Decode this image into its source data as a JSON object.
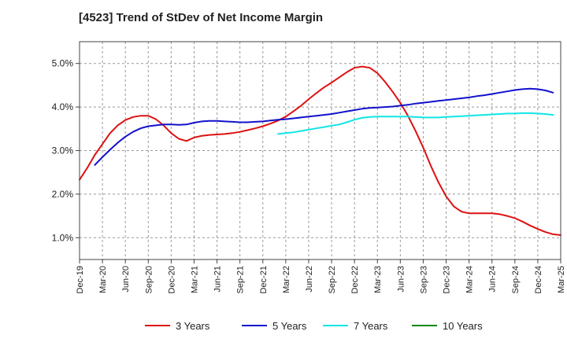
{
  "chart_data": {
    "type": "line",
    "title": "[4523]  Trend of StDev of Net Income Margin",
    "xlabel": "",
    "ylabel": "",
    "ylim": [
      0.5,
      5.5
    ],
    "y_ticks": [
      {
        "value": 1.0,
        "label": "1.0%"
      },
      {
        "value": 2.0,
        "label": "2.0%"
      },
      {
        "value": 3.0,
        "label": "3.0%"
      },
      {
        "value": 4.0,
        "label": "4.0%"
      },
      {
        "value": 5.0,
        "label": "5.0%"
      }
    ],
    "x_range": [
      "2019-12",
      "2025-03"
    ],
    "x_ticks": [
      {
        "date": "2019-12",
        "label": "Dec-19"
      },
      {
        "date": "2020-03",
        "label": "Mar-20"
      },
      {
        "date": "2020-06",
        "label": "Jun-20"
      },
      {
        "date": "2020-09",
        "label": "Sep-20"
      },
      {
        "date": "2020-12",
        "label": "Dec-20"
      },
      {
        "date": "2021-03",
        "label": "Mar-21"
      },
      {
        "date": "2021-06",
        "label": "Jun-21"
      },
      {
        "date": "2021-09",
        "label": "Sep-21"
      },
      {
        "date": "2021-12",
        "label": "Dec-21"
      },
      {
        "date": "2022-03",
        "label": "Mar-22"
      },
      {
        "date": "2022-06",
        "label": "Jun-22"
      },
      {
        "date": "2022-09",
        "label": "Sep-22"
      },
      {
        "date": "2022-12",
        "label": "Dec-22"
      },
      {
        "date": "2023-03",
        "label": "Mar-23"
      },
      {
        "date": "2023-06",
        "label": "Jun-23"
      },
      {
        "date": "2023-09",
        "label": "Sep-23"
      },
      {
        "date": "2023-12",
        "label": "Dec-23"
      },
      {
        "date": "2024-03",
        "label": "Mar-24"
      },
      {
        "date": "2024-06",
        "label": "Jun-24"
      },
      {
        "date": "2024-09",
        "label": "Sep-24"
      },
      {
        "date": "2024-12",
        "label": "Dec-24"
      },
      {
        "date": "2025-03",
        "label": "Mar-25"
      }
    ],
    "grid": true,
    "legend_position": "bottom",
    "series": [
      {
        "name": "3 Years",
        "color": "#dd1111",
        "points": [
          [
            "2019-12",
            2.33
          ],
          [
            "2020-01",
            2.6
          ],
          [
            "2020-02",
            2.9
          ],
          [
            "2020-03",
            3.15
          ],
          [
            "2020-04",
            3.4
          ],
          [
            "2020-05",
            3.58
          ],
          [
            "2020-06",
            3.7
          ],
          [
            "2020-07",
            3.77
          ],
          [
            "2020-08",
            3.8
          ],
          [
            "2020-09",
            3.8
          ],
          [
            "2020-10",
            3.72
          ],
          [
            "2020-11",
            3.58
          ],
          [
            "2020-12",
            3.4
          ],
          [
            "2021-01",
            3.27
          ],
          [
            "2021-02",
            3.22
          ],
          [
            "2021-03",
            3.3
          ],
          [
            "2021-04",
            3.34
          ],
          [
            "2021-05",
            3.36
          ],
          [
            "2021-06",
            3.37
          ],
          [
            "2021-07",
            3.38
          ],
          [
            "2021-08",
            3.4
          ],
          [
            "2021-09",
            3.43
          ],
          [
            "2021-10",
            3.47
          ],
          [
            "2021-11",
            3.51
          ],
          [
            "2021-12",
            3.56
          ],
          [
            "2022-01",
            3.62
          ],
          [
            "2022-02",
            3.69
          ],
          [
            "2022-03",
            3.78
          ],
          [
            "2022-04",
            3.9
          ],
          [
            "2022-05",
            4.03
          ],
          [
            "2022-06",
            4.18
          ],
          [
            "2022-07",
            4.32
          ],
          [
            "2022-08",
            4.45
          ],
          [
            "2022-09",
            4.56
          ],
          [
            "2022-10",
            4.68
          ],
          [
            "2022-11",
            4.8
          ],
          [
            "2022-12",
            4.9
          ],
          [
            "2023-01",
            4.93
          ],
          [
            "2023-02",
            4.9
          ],
          [
            "2023-03",
            4.78
          ],
          [
            "2023-04",
            4.58
          ],
          [
            "2023-05",
            4.35
          ],
          [
            "2023-06",
            4.1
          ],
          [
            "2023-07",
            3.8
          ],
          [
            "2023-08",
            3.45
          ],
          [
            "2023-09",
            3.07
          ],
          [
            "2023-10",
            2.65
          ],
          [
            "2023-11",
            2.27
          ],
          [
            "2023-12",
            1.95
          ],
          [
            "2024-01",
            1.72
          ],
          [
            "2024-02",
            1.6
          ],
          [
            "2024-03",
            1.56
          ],
          [
            "2024-04",
            1.56
          ],
          [
            "2024-05",
            1.56
          ],
          [
            "2024-06",
            1.56
          ],
          [
            "2024-07",
            1.54
          ],
          [
            "2024-08",
            1.5
          ],
          [
            "2024-09",
            1.45
          ],
          [
            "2024-10",
            1.37
          ],
          [
            "2024-11",
            1.28
          ],
          [
            "2024-12",
            1.2
          ],
          [
            "2025-01",
            1.13
          ],
          [
            "2025-02",
            1.08
          ],
          [
            "2025-03",
            1.06
          ]
        ]
      },
      {
        "name": "5 Years",
        "color": "#1111cc",
        "points": [
          [
            "2020-02",
            2.67
          ],
          [
            "2020-03",
            2.85
          ],
          [
            "2020-04",
            3.02
          ],
          [
            "2020-05",
            3.18
          ],
          [
            "2020-06",
            3.32
          ],
          [
            "2020-07",
            3.43
          ],
          [
            "2020-08",
            3.51
          ],
          [
            "2020-09",
            3.56
          ],
          [
            "2020-10",
            3.58
          ],
          [
            "2020-11",
            3.6
          ],
          [
            "2020-12",
            3.6
          ],
          [
            "2021-01",
            3.59
          ],
          [
            "2021-02",
            3.6
          ],
          [
            "2021-03",
            3.64
          ],
          [
            "2021-04",
            3.67
          ],
          [
            "2021-05",
            3.68
          ],
          [
            "2021-06",
            3.68
          ],
          [
            "2021-07",
            3.67
          ],
          [
            "2021-08",
            3.66
          ],
          [
            "2021-09",
            3.65
          ],
          [
            "2021-10",
            3.65
          ],
          [
            "2021-11",
            3.66
          ],
          [
            "2021-12",
            3.67
          ],
          [
            "2022-01",
            3.69
          ],
          [
            "2022-02",
            3.71
          ],
          [
            "2022-03",
            3.72
          ],
          [
            "2022-04",
            3.74
          ],
          [
            "2022-05",
            3.76
          ],
          [
            "2022-06",
            3.78
          ],
          [
            "2022-07",
            3.8
          ],
          [
            "2022-08",
            3.82
          ],
          [
            "2022-09",
            3.84
          ],
          [
            "2022-10",
            3.87
          ],
          [
            "2022-11",
            3.9
          ],
          [
            "2022-12",
            3.93
          ],
          [
            "2023-01",
            3.96
          ],
          [
            "2023-02",
            3.98
          ],
          [
            "2023-03",
            3.99
          ],
          [
            "2023-04",
            4.0
          ],
          [
            "2023-05",
            4.01
          ],
          [
            "2023-06",
            4.03
          ],
          [
            "2023-07",
            4.05
          ],
          [
            "2023-08",
            4.08
          ],
          [
            "2023-09",
            4.1
          ],
          [
            "2023-10",
            4.12
          ],
          [
            "2023-11",
            4.14
          ],
          [
            "2023-12",
            4.16
          ],
          [
            "2024-01",
            4.18
          ],
          [
            "2024-02",
            4.2
          ],
          [
            "2024-03",
            4.22
          ],
          [
            "2024-04",
            4.25
          ],
          [
            "2024-05",
            4.27
          ],
          [
            "2024-06",
            4.3
          ],
          [
            "2024-07",
            4.33
          ],
          [
            "2024-08",
            4.36
          ],
          [
            "2024-09",
            4.39
          ],
          [
            "2024-10",
            4.41
          ],
          [
            "2024-11",
            4.42
          ],
          [
            "2024-12",
            4.41
          ],
          [
            "2025-01",
            4.38
          ],
          [
            "2025-02",
            4.33
          ]
        ]
      },
      {
        "name": "7 Years",
        "color": "#11e5e5",
        "points": [
          [
            "2022-02",
            3.38
          ],
          [
            "2022-03",
            3.4
          ],
          [
            "2022-04",
            3.42
          ],
          [
            "2022-05",
            3.45
          ],
          [
            "2022-06",
            3.48
          ],
          [
            "2022-07",
            3.51
          ],
          [
            "2022-08",
            3.54
          ],
          [
            "2022-09",
            3.57
          ],
          [
            "2022-10",
            3.6
          ],
          [
            "2022-11",
            3.65
          ],
          [
            "2022-12",
            3.71
          ],
          [
            "2023-01",
            3.75
          ],
          [
            "2023-02",
            3.77
          ],
          [
            "2023-03",
            3.78
          ],
          [
            "2023-04",
            3.78
          ],
          [
            "2023-05",
            3.78
          ],
          [
            "2023-06",
            3.78
          ],
          [
            "2023-07",
            3.78
          ],
          [
            "2023-08",
            3.77
          ],
          [
            "2023-09",
            3.76
          ],
          [
            "2023-10",
            3.76
          ],
          [
            "2023-11",
            3.76
          ],
          [
            "2023-12",
            3.77
          ],
          [
            "2024-01",
            3.78
          ],
          [
            "2024-02",
            3.79
          ],
          [
            "2024-03",
            3.8
          ],
          [
            "2024-04",
            3.81
          ],
          [
            "2024-05",
            3.82
          ],
          [
            "2024-06",
            3.83
          ],
          [
            "2024-07",
            3.84
          ],
          [
            "2024-08",
            3.85
          ],
          [
            "2024-09",
            3.85
          ],
          [
            "2024-10",
            3.86
          ],
          [
            "2024-11",
            3.86
          ],
          [
            "2024-12",
            3.85
          ],
          [
            "2025-01",
            3.84
          ],
          [
            "2025-02",
            3.82
          ]
        ]
      },
      {
        "name": "10 Years",
        "color": "#118811",
        "points": []
      }
    ]
  }
}
